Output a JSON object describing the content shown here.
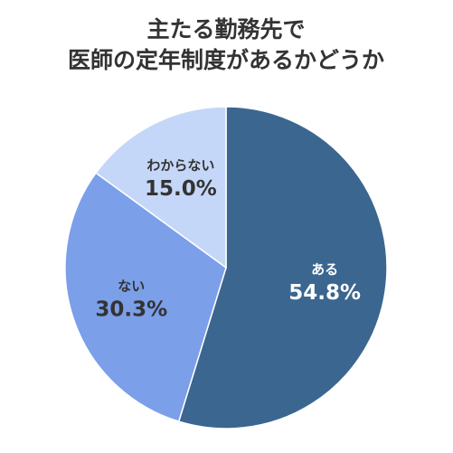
{
  "chart_data": {
    "type": "pie",
    "title": [
      "主たる勤務先で",
      "医師の定年制度があるかどうか"
    ],
    "categories": [
      "ある",
      "ない",
      "わからない"
    ],
    "values": [
      54.8,
      30.3,
      15.0
    ],
    "value_labels": [
      "54.8%",
      "30.3%",
      "15.0%"
    ],
    "colors": [
      "#3b668f",
      "#7b9fe9",
      "#c5d7f8"
    ]
  }
}
